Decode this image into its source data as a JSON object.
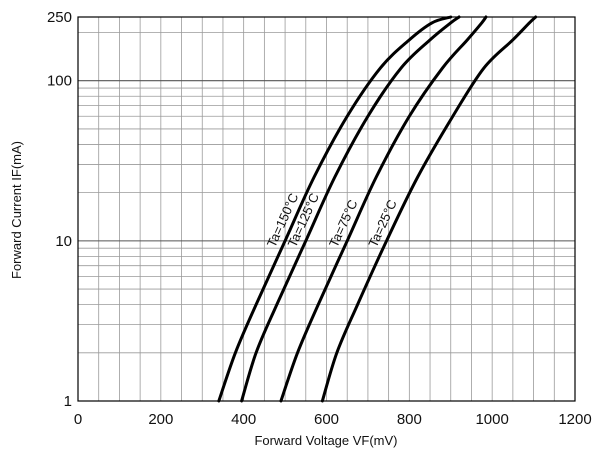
{
  "chart_data": {
    "type": "line",
    "xlabel": "Forward Voltage  VF(mV)",
    "ylabel": "Forward Current  IF(mA)",
    "x_scale": "linear",
    "y_scale": "log",
    "xlim": [
      0,
      1200
    ],
    "ylim": [
      1,
      250
    ],
    "x_ticks": [
      0,
      200,
      400,
      600,
      800,
      1000,
      1200
    ],
    "x_tick_labels": [
      "0",
      "200",
      "400",
      "600",
      "800",
      "1000",
      "1200"
    ],
    "y_ticks": [
      1,
      10,
      100,
      250
    ],
    "y_tick_labels": [
      "1",
      "10",
      "100",
      "250"
    ],
    "grid": true,
    "legend": "none",
    "series": [
      {
        "name": "Ta=150°C",
        "x": [
          340,
          380,
          430,
          500,
          570,
          650,
          730,
          800,
          855,
          900
        ],
        "y": [
          1,
          2,
          4,
          10,
          25,
          60,
          120,
          180,
          230,
          250
        ]
      },
      {
        "name": "Ta=125°C",
        "x": [
          395,
          430,
          480,
          550,
          620,
          700,
          780,
          850,
          900,
          920
        ],
        "y": [
          1,
          2,
          4,
          10,
          25,
          60,
          120,
          180,
          230,
          250
        ]
      },
      {
        "name": "Ta=75°C",
        "x": [
          490,
          530,
          580,
          650,
          720,
          800,
          880,
          940,
          975,
          985
        ],
        "y": [
          1,
          2,
          4,
          10,
          25,
          60,
          120,
          180,
          230,
          250
        ]
      },
      {
        "name": "Ta=25°C",
        "x": [
          590,
          625,
          675,
          745,
          820,
          905,
          980,
          1050,
          1090,
          1105
        ],
        "y": [
          1,
          2,
          4,
          10,
          25,
          60,
          120,
          180,
          230,
          250
        ]
      }
    ],
    "line_color": "#000000",
    "grid_color": "#9a9a9a",
    "axis_color": "#000000"
  }
}
